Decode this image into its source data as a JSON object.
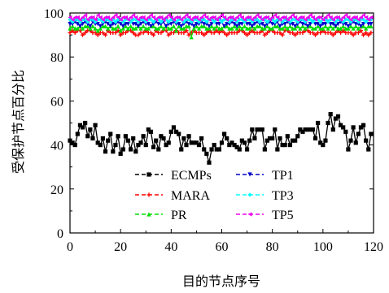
{
  "chart_data": {
    "type": "line",
    "xlabel": "目的节点序号",
    "ylabel": "受保护节点百分比",
    "xlim": [
      0,
      120
    ],
    "ylim": [
      0,
      100
    ],
    "xticks": [
      0,
      20,
      40,
      60,
      80,
      100,
      120
    ],
    "yticks": [
      0,
      20,
      40,
      60,
      80,
      100
    ],
    "grid": false,
    "legend_position": "lower-center",
    "series": [
      {
        "name": "ECMPs",
        "color": "#000000",
        "marker": "square",
        "values": [
          42,
          41,
          40,
          45,
          49,
          48,
          50,
          44,
          47,
          43,
          49,
          41,
          40,
          43,
          37,
          42,
          45,
          37,
          40,
          44,
          36,
          38,
          44,
          42,
          38,
          43,
          37,
          40,
          41,
          44,
          40,
          47,
          46,
          39,
          42,
          38,
          44,
          43,
          40,
          41,
          46,
          48,
          46,
          45,
          38,
          43,
          40,
          44,
          41,
          41,
          41,
          40,
          43,
          38,
          36,
          32,
          38,
          40,
          38,
          38,
          41,
          45,
          43,
          40,
          41,
          40,
          39,
          38,
          42,
          41,
          38,
          42,
          47,
          43,
          47,
          47,
          47,
          38,
          42,
          43,
          43,
          47,
          38,
          43,
          40,
          40,
          44,
          40,
          42,
          42,
          44,
          47,
          46,
          47,
          47,
          47,
          47,
          43,
          50,
          41,
          40,
          42,
          50,
          54,
          47,
          52,
          53,
          49,
          48,
          46,
          38,
          42,
          48,
          41,
          45,
          48,
          49,
          42,
          38,
          45
        ]
      },
      {
        "name": "MARA",
        "color": "#ff0000",
        "marker": "plus",
        "values": [
          91,
          92,
          91,
          92,
          92,
          90,
          91,
          92,
          92,
          91,
          91,
          90,
          91,
          91,
          90,
          92,
          91,
          91,
          91,
          92,
          90,
          91,
          91,
          92,
          92,
          91,
          90,
          90,
          91,
          91,
          92,
          91,
          91,
          90,
          92,
          91,
          91,
          92,
          92,
          90,
          91,
          91,
          92,
          91,
          91,
          91,
          92,
          90,
          91,
          92,
          91,
          91,
          91,
          90,
          91,
          92,
          91,
          91,
          92,
          91,
          92,
          91,
          90,
          91,
          91,
          91,
          91,
          92,
          92,
          91,
          90,
          91,
          92,
          91,
          91,
          91,
          92,
          90,
          91,
          92,
          92,
          91,
          91,
          91,
          90,
          92,
          92,
          91,
          91,
          90,
          91,
          91,
          91,
          92,
          92,
          91,
          91,
          90,
          91,
          91,
          92,
          91,
          91,
          91,
          90,
          91,
          92,
          91,
          92,
          91,
          91,
          91,
          90,
          91,
          91,
          92,
          90,
          91,
          90,
          91
        ]
      },
      {
        "name": "PR",
        "color": "#00dd00",
        "marker": "triangle-up",
        "values": [
          93,
          94,
          93,
          93,
          94,
          93,
          94,
          94,
          93,
          94,
          93,
          92,
          93,
          94,
          94,
          93,
          94,
          93,
          93,
          94,
          92,
          93,
          94,
          93,
          94,
          93,
          93,
          94,
          93,
          94,
          93,
          93,
          94,
          94,
          93,
          93,
          94,
          93,
          94,
          93,
          93,
          94,
          92,
          94,
          93,
          93,
          94,
          94,
          89,
          93,
          94,
          93,
          94,
          94,
          93,
          93,
          94,
          93,
          94,
          93,
          93,
          94,
          94,
          93,
          93,
          94,
          93,
          94,
          93,
          94,
          93,
          93,
          94,
          93,
          94,
          94,
          93,
          93,
          94,
          93,
          93,
          94,
          94,
          93,
          93,
          94,
          93,
          94,
          93,
          93,
          94,
          93,
          94,
          93,
          94,
          94,
          93,
          93,
          94,
          93,
          93,
          94,
          93,
          94,
          93,
          94,
          93,
          93,
          94,
          93,
          93,
          94,
          93,
          94,
          93,
          94,
          94,
          93,
          94,
          94
        ]
      },
      {
        "name": "TP1",
        "color": "#0000cc",
        "marker": "triangle-down",
        "values": [
          95,
          95,
          96,
          95,
          94,
          95,
          96,
          95,
          94,
          96,
          95,
          95,
          94,
          95,
          96,
          95,
          94,
          95,
          95,
          96,
          95,
          94,
          95,
          95,
          96,
          95,
          95,
          94,
          95,
          96,
          95,
          95,
          94,
          95,
          96,
          95,
          95,
          96,
          94,
          95,
          95,
          96,
          95,
          95,
          94,
          95,
          96,
          95,
          95,
          94,
          95,
          95,
          96,
          95,
          95,
          94,
          95,
          96,
          95,
          95,
          96,
          94,
          95,
          95,
          96,
          95,
          94,
          95,
          95,
          96,
          95,
          95,
          94,
          95,
          96,
          95,
          95,
          94,
          95,
          96,
          95,
          95,
          96,
          94,
          95,
          95,
          96,
          95,
          95,
          94,
          95,
          96,
          95,
          95,
          94,
          95,
          96,
          95,
          95,
          94,
          95,
          95,
          96,
          95,
          95,
          94,
          95,
          96,
          95,
          95,
          94,
          95,
          96,
          95,
          95,
          94,
          95,
          96,
          95,
          95
        ]
      },
      {
        "name": "TP3",
        "color": "#00ffff",
        "marker": "diamond",
        "values": [
          97,
          96,
          97,
          97,
          96,
          97,
          97,
          96,
          97,
          97,
          96,
          97,
          97,
          96,
          97,
          97,
          96,
          97,
          96,
          97,
          97,
          96,
          97,
          97,
          96,
          97,
          97,
          96,
          97,
          97,
          96,
          97,
          97,
          96,
          97,
          97,
          96,
          97,
          97,
          96,
          97,
          97,
          96,
          97,
          97,
          96,
          97,
          97,
          96,
          97,
          97,
          96,
          97,
          97,
          96,
          97,
          97,
          96,
          97,
          97,
          96,
          97,
          97,
          96,
          97,
          97,
          96,
          97,
          97,
          96,
          97,
          97,
          96,
          97,
          97,
          96,
          97,
          97,
          96,
          97,
          97,
          96,
          97,
          97,
          96,
          97,
          97,
          96,
          97,
          97,
          96,
          97,
          97,
          96,
          97,
          97,
          96,
          97,
          97,
          96,
          97,
          97,
          96,
          97,
          97,
          96,
          97,
          97,
          96,
          97,
          97,
          96,
          97,
          97,
          96,
          97,
          97,
          96,
          97,
          97
        ]
      },
      {
        "name": "TP5",
        "color": "#ee00ee",
        "marker": "triangle-left",
        "values": [
          98,
          97,
          98,
          98,
          97,
          98,
          99,
          97,
          98,
          98,
          97,
          99,
          98,
          97,
          98,
          98,
          97,
          98,
          99,
          98,
          97,
          98,
          98,
          97,
          98,
          99,
          98,
          97,
          98,
          98,
          97,
          98,
          99,
          98,
          97,
          98,
          98,
          97,
          98,
          99,
          98,
          97,
          98,
          98,
          97,
          98,
          99,
          98,
          97,
          98,
          98,
          97,
          98,
          99,
          98,
          97,
          98,
          98,
          97,
          98,
          99,
          98,
          97,
          98,
          98,
          97,
          98,
          99,
          98,
          97,
          98,
          98,
          97,
          98,
          99,
          98,
          97,
          98,
          98,
          97,
          98,
          99,
          98,
          97,
          98,
          98,
          97,
          98,
          99,
          98,
          97,
          98,
          98,
          97,
          98,
          99,
          98,
          97,
          98,
          98,
          97,
          98,
          99,
          98,
          97,
          98,
          98,
          97,
          98,
          99,
          98,
          97,
          98,
          98,
          97,
          98,
          99,
          98,
          97,
          98
        ]
      }
    ]
  }
}
